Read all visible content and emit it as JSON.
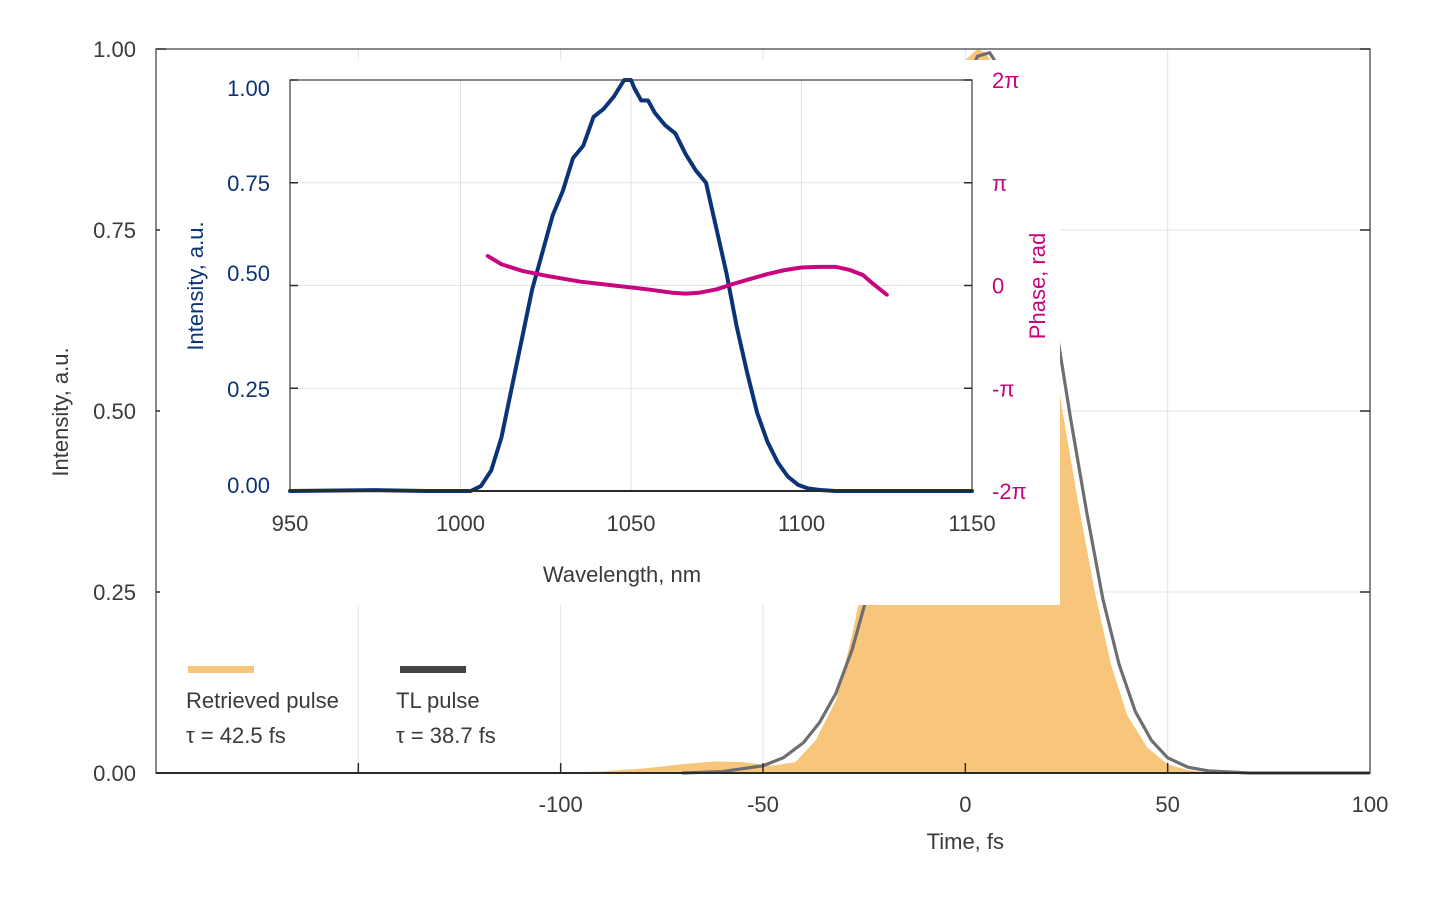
{
  "chart_data": [
    {
      "type": "area",
      "xlabel": "Time, fs",
      "ylabel": "Intensity, a.u.",
      "xlim": [
        -200,
        100
      ],
      "ylim": [
        0,
        1.0
      ],
      "x_ticks": [
        -100,
        -50,
        0,
        50,
        100
      ],
      "x_tick_labels": [
        "-100",
        "-50",
        "0",
        "50",
        "100"
      ],
      "y_ticks": [
        0,
        0.25,
        0.5,
        0.75,
        1.0
      ],
      "y_tick_labels": [
        "0.00",
        "0.25",
        "0.50",
        "0.75",
        "1.00"
      ],
      "grid": true,
      "legend_position": "bottom-left",
      "series": [
        {
          "name": "Retrieved pulse",
          "annotation": "τ = 42.5 fs",
          "color": "#F7C67A",
          "style": "filled area",
          "x": [
            -105,
            -90,
            -80,
            -70,
            -62,
            -55,
            -48,
            -42,
            -37,
            -32,
            -28,
            -24,
            -20,
            -16,
            -12,
            -8,
            -4,
            0,
            3,
            5,
            8,
            12,
            16,
            20,
            24,
            28,
            32,
            36,
            40,
            45,
            50,
            55,
            60,
            70,
            80,
            100
          ],
          "y": [
            0.0,
            0.002,
            0.006,
            0.012,
            0.016,
            0.015,
            0.01,
            0.015,
            0.045,
            0.1,
            0.19,
            0.3,
            0.43,
            0.57,
            0.71,
            0.83,
            0.93,
            0.985,
            1.0,
            0.995,
            0.97,
            0.9,
            0.79,
            0.65,
            0.5,
            0.37,
            0.25,
            0.15,
            0.08,
            0.035,
            0.012,
            0.004,
            0.001,
            0.0,
            0.0,
            0.0
          ]
        },
        {
          "name": "TL pulse",
          "annotation": "τ = 38.7 fs",
          "color": "#6E6E70",
          "style": "line",
          "x": [
            -70,
            -60,
            -50,
            -45,
            -40,
            -36,
            -32,
            -28,
            -24,
            -20,
            -16,
            -12,
            -8,
            -4,
            0,
            3,
            6,
            10,
            14,
            18,
            22,
            26,
            30,
            34,
            38,
            42,
            46,
            50,
            55,
            60,
            70,
            80,
            100
          ],
          "y": [
            0.0,
            0.002,
            0.01,
            0.021,
            0.042,
            0.07,
            0.11,
            0.17,
            0.25,
            0.35,
            0.47,
            0.6,
            0.73,
            0.85,
            0.95,
            0.99,
            0.995,
            0.96,
            0.88,
            0.77,
            0.63,
            0.49,
            0.36,
            0.24,
            0.15,
            0.085,
            0.045,
            0.021,
            0.008,
            0.003,
            0.0,
            0.0,
            0.0
          ]
        }
      ]
    },
    {
      "type": "line",
      "xlabel": "Wavelength, nm",
      "ylabel": "Intensity, a.u.",
      "y2label": "Phase, rad",
      "xlim": [
        950,
        1150
      ],
      "ylim": [
        0,
        1.0
      ],
      "y2lim": [
        -6.2832,
        6.2832
      ],
      "x_ticks": [
        950,
        1000,
        1050,
        1100,
        1150
      ],
      "x_tick_labels": [
        "950",
        "1000",
        "1050",
        "1100",
        "1150"
      ],
      "y_ticks": [
        0,
        0.25,
        0.5,
        0.75,
        1.0
      ],
      "y_tick_labels": [
        "0.00",
        "0.25",
        "0.50",
        "0.75",
        "1.00"
      ],
      "y2_ticks": [
        -6.2832,
        -3.1416,
        0,
        3.1416,
        6.2832
      ],
      "y2_tick_labels": [
        "-2π",
        "-π",
        "0",
        "π",
        "2π"
      ],
      "grid": true,
      "series": [
        {
          "axis": "left",
          "color": "#0B3477",
          "x": [
            950,
            975,
            990,
            1003,
            1006,
            1009,
            1012,
            1015,
            1018,
            1021,
            1024,
            1027,
            1030,
            1033,
            1036,
            1039,
            1042,
            1045,
            1048,
            1050,
            1051,
            1053,
            1055,
            1057,
            1060,
            1063,
            1066,
            1069,
            1072,
            1075,
            1078,
            1081,
            1084,
            1087,
            1090,
            1093,
            1096,
            1099,
            1102,
            1106,
            1110,
            1120,
            1150
          ],
          "y": [
            0.0,
            0.002,
            0.0,
            0.0,
            0.012,
            0.05,
            0.13,
            0.25,
            0.37,
            0.49,
            0.58,
            0.67,
            0.73,
            0.81,
            0.84,
            0.91,
            0.93,
            0.96,
            1.0,
            1.0,
            0.98,
            0.95,
            0.95,
            0.92,
            0.89,
            0.87,
            0.82,
            0.78,
            0.75,
            0.64,
            0.53,
            0.4,
            0.29,
            0.19,
            0.12,
            0.07,
            0.035,
            0.015,
            0.006,
            0.002,
            0.0,
            0.0,
            0.0
          ]
        },
        {
          "axis": "right",
          "color": "#C8057F",
          "x": [
            1008,
            1012,
            1018,
            1025,
            1035,
            1045,
            1055,
            1062,
            1066,
            1070,
            1075,
            1080,
            1085,
            1090,
            1095,
            1100,
            1105,
            1110,
            1114,
            1118,
            1121,
            1125
          ],
          "y": [
            0.9,
            0.65,
            0.45,
            0.3,
            0.12,
            0.0,
            -0.12,
            -0.22,
            -0.25,
            -0.22,
            -0.12,
            0.05,
            0.2,
            0.35,
            0.47,
            0.55,
            0.57,
            0.57,
            0.48,
            0.32,
            0.05,
            -0.28
          ]
        }
      ]
    }
  ]
}
